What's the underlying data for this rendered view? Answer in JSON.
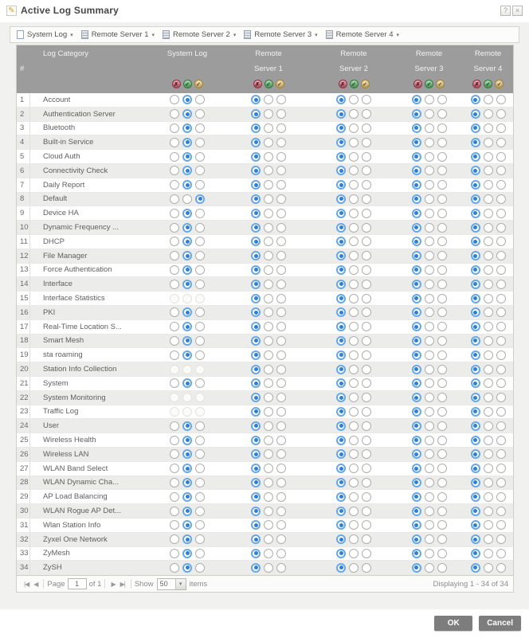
{
  "window": {
    "title": "Active Log Summary",
    "help_glyph": "?",
    "close_glyph": "×",
    "edit_glyph": "✎"
  },
  "toolbar": {
    "dropdown_arrow": "▾",
    "items": [
      {
        "label": "System Log",
        "icon": "document-icon"
      },
      {
        "label": "Remote Server 1",
        "icon": "server-icon"
      },
      {
        "label": "Remote Server 2",
        "icon": "server-icon"
      },
      {
        "label": "Remote Server 3",
        "icon": "server-icon"
      },
      {
        "label": "Remote Server 4",
        "icon": "server-icon"
      }
    ]
  },
  "table": {
    "header": {
      "num": "#",
      "category": "Log Category",
      "system_log": "System Log",
      "rs1_line1": "Remote",
      "rs1_line2": "Server 1",
      "rs2_line1": "Remote",
      "rs2_line2": "Server 2",
      "rs3_line1": "Remote",
      "rs3_line2": "Server 3",
      "rs4_line1": "Remote",
      "rs4_line2": "Server 4"
    },
    "icons": {
      "disable": "✗",
      "enable": "✓",
      "debug": "✓"
    },
    "state_options": [
      "disable",
      "normal",
      "debug"
    ],
    "rows": [
      {
        "num": 1,
        "category": "Account",
        "states": [
          "normal",
          "disable",
          "disable",
          "disable",
          "disable"
        ]
      },
      {
        "num": 2,
        "category": "Authentication Server",
        "states": [
          "normal",
          "disable",
          "disable",
          "disable",
          "disable"
        ]
      },
      {
        "num": 3,
        "category": "Bluetooth",
        "states": [
          "normal",
          "disable",
          "disable",
          "disable",
          "disable"
        ]
      },
      {
        "num": 4,
        "category": "Built-in Service",
        "states": [
          "normal",
          "disable",
          "disable",
          "disable",
          "disable"
        ]
      },
      {
        "num": 5,
        "category": "Cloud Auth",
        "states": [
          "normal",
          "disable",
          "disable",
          "disable",
          "disable"
        ]
      },
      {
        "num": 6,
        "category": "Connectivity Check",
        "states": [
          "normal",
          "disable",
          "disable",
          "disable",
          "disable"
        ]
      },
      {
        "num": 7,
        "category": "Daily Report",
        "states": [
          "normal",
          "disable",
          "disable",
          "disable",
          "disable"
        ]
      },
      {
        "num": 8,
        "category": "Default",
        "states": [
          "debug",
          "disable",
          "disable",
          "disable",
          "disable"
        ]
      },
      {
        "num": 9,
        "category": "Device HA",
        "states": [
          "normal",
          "disable",
          "disable",
          "disable",
          "disable"
        ]
      },
      {
        "num": 10,
        "category": "Dynamic Frequency ...",
        "states": [
          "normal",
          "disable",
          "disable",
          "disable",
          "disable"
        ]
      },
      {
        "num": 11,
        "category": "DHCP",
        "states": [
          "normal",
          "disable",
          "disable",
          "disable",
          "disable"
        ]
      },
      {
        "num": 12,
        "category": "File Manager",
        "states": [
          "normal",
          "disable",
          "disable",
          "disable",
          "disable"
        ]
      },
      {
        "num": 13,
        "category": "Force Authentication",
        "states": [
          "normal",
          "disable",
          "disable",
          "disable",
          "disable"
        ]
      },
      {
        "num": 14,
        "category": "Interface",
        "states": [
          "normal",
          "disable",
          "disable",
          "disable",
          "disable"
        ]
      },
      {
        "num": 15,
        "category": "Interface Statistics",
        "states": [
          "off",
          "disable",
          "disable",
          "disable",
          "disable"
        ]
      },
      {
        "num": 16,
        "category": "PKI",
        "states": [
          "normal",
          "disable",
          "disable",
          "disable",
          "disable"
        ]
      },
      {
        "num": 17,
        "category": "Real-Time Location S...",
        "states": [
          "normal",
          "disable",
          "disable",
          "disable",
          "disable"
        ]
      },
      {
        "num": 18,
        "category": "Smart Mesh",
        "states": [
          "normal",
          "disable",
          "disable",
          "disable",
          "disable"
        ]
      },
      {
        "num": 19,
        "category": "sta roaming",
        "states": [
          "normal",
          "disable",
          "disable",
          "disable",
          "disable"
        ]
      },
      {
        "num": 20,
        "category": "Station Info Collection",
        "states": [
          "off",
          "disable",
          "disable",
          "disable",
          "disable"
        ]
      },
      {
        "num": 21,
        "category": "System",
        "states": [
          "normal",
          "disable",
          "disable",
          "disable",
          "disable"
        ]
      },
      {
        "num": 22,
        "category": "System Monitoring",
        "states": [
          "off",
          "disable",
          "disable",
          "disable",
          "disable"
        ]
      },
      {
        "num": 23,
        "category": "Traffic Log",
        "states": [
          "off",
          "disable",
          "disable",
          "disable",
          "disable"
        ]
      },
      {
        "num": 24,
        "category": "User",
        "states": [
          "normal",
          "disable",
          "disable",
          "disable",
          "disable"
        ]
      },
      {
        "num": 25,
        "category": "Wireless Health",
        "states": [
          "normal",
          "disable",
          "disable",
          "disable",
          "disable"
        ]
      },
      {
        "num": 26,
        "category": "Wireless LAN",
        "states": [
          "normal",
          "disable",
          "disable",
          "disable",
          "disable"
        ]
      },
      {
        "num": 27,
        "category": "WLAN Band Select",
        "states": [
          "normal",
          "disable",
          "disable",
          "disable",
          "disable"
        ]
      },
      {
        "num": 28,
        "category": "WLAN Dynamic Cha...",
        "states": [
          "normal",
          "disable",
          "disable",
          "disable",
          "disable"
        ]
      },
      {
        "num": 29,
        "category": "AP Load Balancing",
        "states": [
          "normal",
          "disable",
          "disable",
          "disable",
          "disable"
        ]
      },
      {
        "num": 30,
        "category": "WLAN Rogue AP Det...",
        "states": [
          "normal",
          "disable",
          "disable",
          "disable",
          "disable"
        ]
      },
      {
        "num": 31,
        "category": "Wlan Station Info",
        "states": [
          "normal",
          "disable",
          "disable",
          "disable",
          "disable"
        ]
      },
      {
        "num": 32,
        "category": "Zyxel One Network",
        "states": [
          "normal",
          "disable",
          "disable",
          "disable",
          "disable"
        ]
      },
      {
        "num": 33,
        "category": "ZyMesh",
        "states": [
          "normal",
          "disable",
          "disable",
          "disable",
          "disable"
        ]
      },
      {
        "num": 34,
        "category": "ZySH",
        "states": [
          "normal",
          "disable",
          "disable",
          "disable",
          "disable"
        ]
      }
    ]
  },
  "pager": {
    "first_icon": "|◀",
    "prev_icon": "◀",
    "next_icon": "▶",
    "last_icon": "▶|",
    "page_label": "Page",
    "page_value": "1",
    "of_label": "of 1",
    "show_label": "Show",
    "show_value": "50",
    "select_arrow": "▾",
    "items_label": "items",
    "status": "Displaying 1 - 34 of 34"
  },
  "buttons": {
    "ok": "OK",
    "cancel": "Cancel"
  }
}
